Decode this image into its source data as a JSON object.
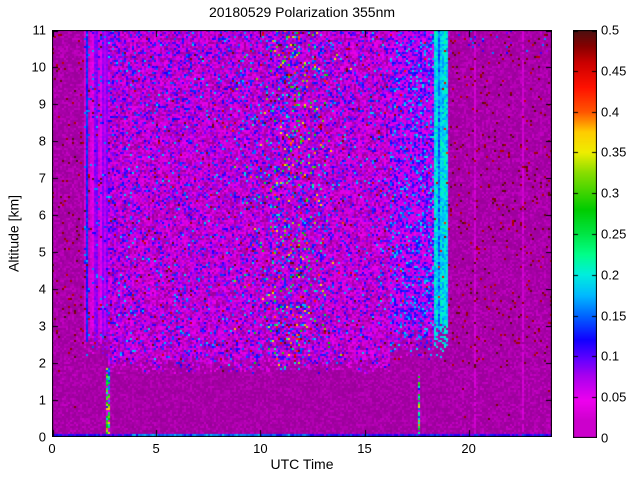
{
  "title": "20180529 Polarization 355nm",
  "axes": {
    "xlabel": "UTC Time",
    "ylabel": "Altitude [km]"
  },
  "chart_data": {
    "type": "heatmap",
    "title": "20180529 Polarization 355nm",
    "xlabel": "UTC Time",
    "ylabel": "Altitude [km]",
    "x_range": [
      0,
      24
    ],
    "y_range": [
      0,
      11
    ],
    "x_ticks": [
      0,
      5,
      10,
      15,
      20
    ],
    "y_ticks": [
      0,
      1,
      2,
      3,
      4,
      5,
      6,
      7,
      8,
      9,
      10,
      11
    ],
    "grid": false,
    "legend": "colorbar-right",
    "colorbar": {
      "min": 0,
      "max": 0.5,
      "tick_values": [
        0,
        0.05,
        0.1,
        0.15,
        0.2,
        0.25,
        0.3,
        0.35,
        0.4,
        0.45,
        0.5
      ],
      "tick_labels": [
        "0",
        "0.05",
        "0.1",
        "0.15",
        "0.2",
        "0.25",
        "0.3",
        "0.35",
        "0.4",
        "0.45",
        "0.5"
      ]
    },
    "background_color": "#CC00CC",
    "colormap_stops": [
      [
        0.0,
        150,
        0,
        150
      ],
      [
        0.02,
        204,
        0,
        204
      ],
      [
        0.045,
        238,
        0,
        238
      ],
      [
        0.075,
        170,
        0,
        238
      ],
      [
        0.095,
        102,
        0,
        255
      ],
      [
        0.12,
        17,
        0,
        255
      ],
      [
        0.15,
        0,
        102,
        255
      ],
      [
        0.175,
        0,
        187,
        255
      ],
      [
        0.2,
        0,
        238,
        221
      ],
      [
        0.225,
        0,
        255,
        136
      ],
      [
        0.25,
        0,
        230,
        68
      ],
      [
        0.28,
        0,
        204,
        0
      ],
      [
        0.325,
        136,
        221,
        0
      ],
      [
        0.35,
        238,
        238,
        0
      ],
      [
        0.375,
        255,
        204,
        0
      ],
      [
        0.4,
        255,
        85,
        0
      ],
      [
        0.43,
        255,
        17,
        0
      ],
      [
        0.46,
        204,
        0,
        0
      ],
      [
        0.48,
        136,
        0,
        0
      ],
      [
        0.5,
        74,
        16,
        16
      ]
    ],
    "params": {
      "seed": 7,
      "smooth_left_t": [
        0,
        1.5
      ],
      "stripe_band_t": [
        1.5,
        2.65
      ],
      "noisy_mid_t": [
        2.65,
        16.2
      ],
      "central_column": {
        "t_center": 11.5,
        "t_sigma": 1.45,
        "alt_min": 1.9,
        "value_range": [
          0.13,
          0.5
        ]
      },
      "dark_lines_t": [
        10.2,
        12.45
      ],
      "right_band_t": [
        16.2,
        19.05
      ],
      "cyan_stripes_t": [
        18.25,
        19.05
      ],
      "smooth_right_t": [
        19.05,
        24
      ],
      "faint_lines_t": [
        20.3,
        22.6
      ],
      "low_smooth_alt_max": 1.75,
      "bottom_band_alt": [
        0,
        0.08
      ],
      "plumes": [
        {
          "t": 2.68,
          "alt_top": 1.88
        },
        {
          "t": 17.63,
          "alt_top": 1.72
        }
      ],
      "maroon_dot_value": 0.48,
      "noise_base_values": [
        0,
        0.06
      ]
    }
  }
}
